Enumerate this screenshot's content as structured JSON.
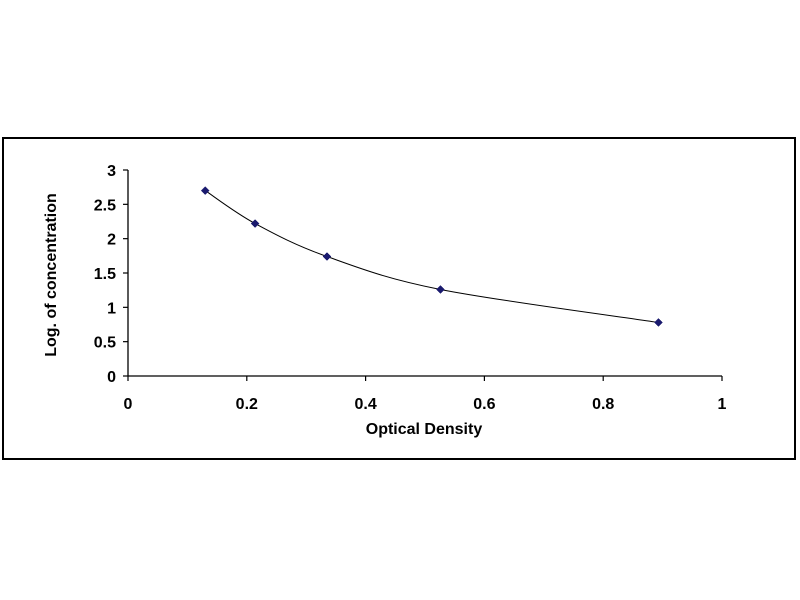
{
  "chart_data": {
    "type": "scatter",
    "title": "",
    "xlabel": "Optical Density",
    "ylabel": "Log. of concentration",
    "xlim": [
      0,
      1
    ],
    "ylim": [
      0,
      3
    ],
    "x_ticks": [
      "0",
      "0.2",
      "0.4",
      "0.6",
      "0.8",
      "1"
    ],
    "y_ticks": [
      "0",
      "0.5",
      "1",
      "1.5",
      "2",
      "2.5",
      "3"
    ],
    "grid": false,
    "legend": "none",
    "trendline": "smooth curve through points",
    "marker": "diamond",
    "colors": {
      "marker": "#1a1a6e",
      "line": "#000000",
      "axes": "#000000"
    },
    "series": [
      {
        "x": [
          0.13,
          0.214,
          0.335,
          0.526,
          0.893
        ],
        "y": [
          2.7,
          2.22,
          1.74,
          1.26,
          0.78
        ]
      }
    ]
  }
}
